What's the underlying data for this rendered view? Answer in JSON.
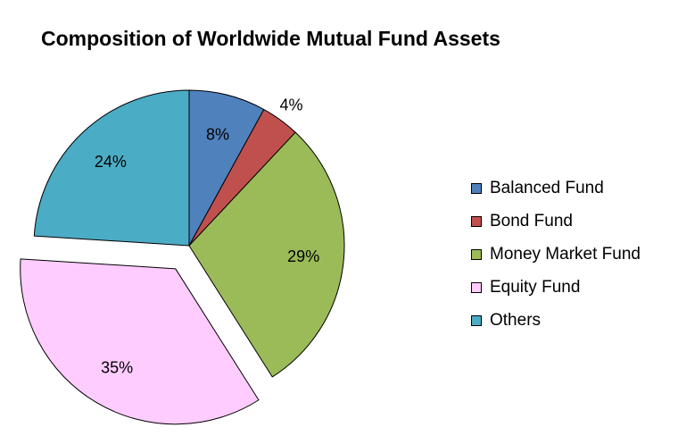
{
  "chart_data": {
    "type": "pie",
    "title": "Composition of Worldwide Mutual Fund Assets",
    "slices": [
      {
        "name": "Balanced Fund",
        "value": 8,
        "label": "8%",
        "color": "#4f81bd"
      },
      {
        "name": "Bond Fund",
        "value": 4,
        "label": "4%",
        "color": "#c0504d"
      },
      {
        "name": "Money Market Fund",
        "value": 29,
        "label": "29%",
        "color": "#9bbb59"
      },
      {
        "name": "Equity Fund",
        "value": 35,
        "label": "35%",
        "color": "#ffccff",
        "exploded": true
      },
      {
        "name": "Others",
        "value": 24,
        "label": "24%",
        "color": "#4bacc6"
      }
    ],
    "legend": {
      "position": "right",
      "entries": [
        "Balanced Fund",
        "Bond Fund",
        "Money Market Fund",
        "Equity Fund",
        "Others"
      ]
    }
  }
}
